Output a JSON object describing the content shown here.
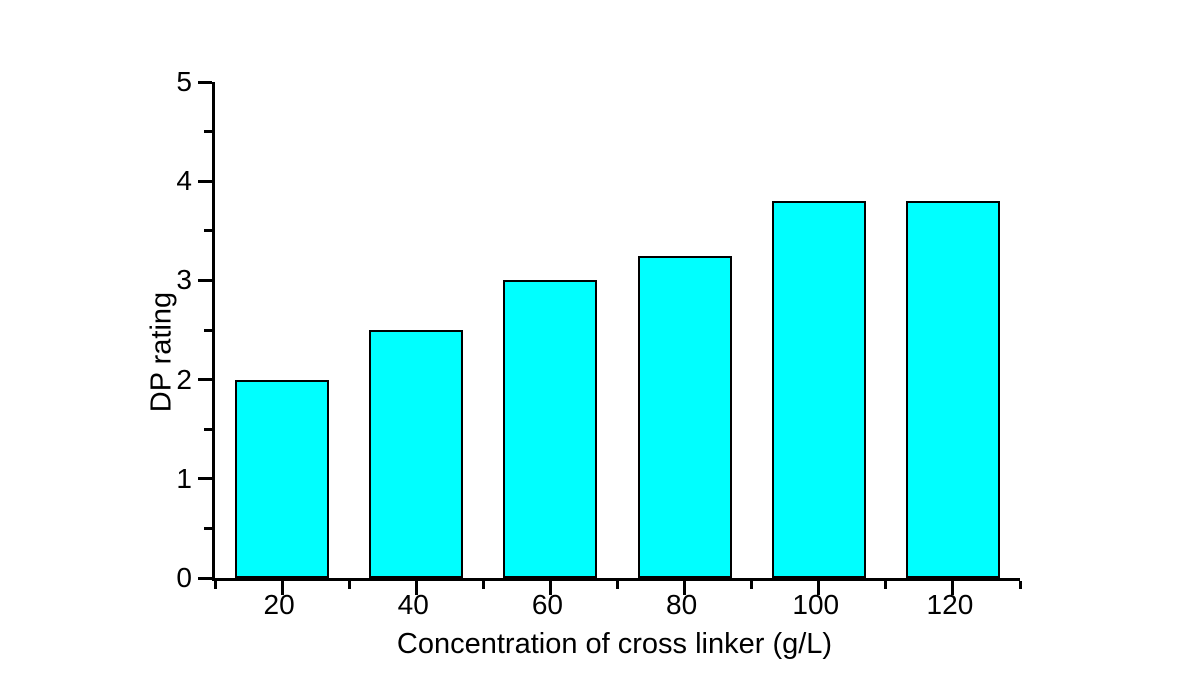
{
  "chart_data": {
    "type": "bar",
    "title": "",
    "xlabel": "Concentration of cross linker (g/L)",
    "ylabel": "DP rating",
    "categories": [
      20,
      40,
      60,
      80,
      100,
      120
    ],
    "values": [
      2.0,
      2.5,
      3.0,
      3.25,
      3.8,
      3.8
    ],
    "xlim": [
      10,
      130
    ],
    "ylim": [
      0,
      5
    ],
    "x_major_ticks": [
      20,
      40,
      60,
      80,
      100,
      120
    ],
    "x_minor_ticks": [
      10,
      30,
      50,
      70,
      90,
      110,
      130
    ],
    "y_major_ticks": [
      0,
      1,
      2,
      3,
      4,
      5
    ],
    "y_minor_ticks": [
      0.5,
      1.5,
      2.5,
      3.5,
      4.5
    ],
    "bar_width_units": 14,
    "bar_fill_color": "#00FFFF",
    "bar_border_color": "#000000",
    "axis_color": "#000000",
    "background_color": "#FFFFFF",
    "grid": false,
    "legend": null,
    "tick_direction": "out"
  }
}
